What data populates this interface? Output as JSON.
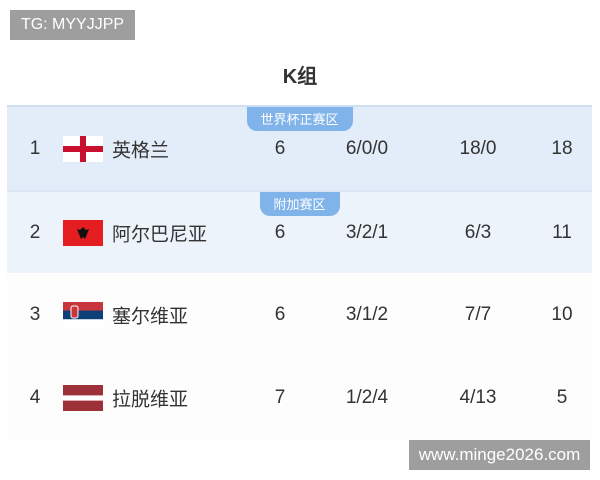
{
  "watermark_top": "TG: MYYJJPP",
  "watermark_bottom": "www.minge2026.com",
  "title": "K组",
  "colors": {
    "qualify_bg": "#e2edf9",
    "playoff_bg": "#edf3fb",
    "badge": "#7fb3ea"
  },
  "rows": [
    {
      "rank": "1",
      "flag": "england-flag",
      "team": "英格兰",
      "played": "6",
      "wdl": "6/0/0",
      "goals": "18/0",
      "points": "18",
      "badge": "世界杯正赛区"
    },
    {
      "rank": "2",
      "flag": "albania-flag",
      "team": "阿尔巴尼亚",
      "played": "6",
      "wdl": "3/2/1",
      "goals": "6/3",
      "points": "11",
      "badge": "附加赛区"
    },
    {
      "rank": "3",
      "flag": "serbia-flag",
      "team": "塞尔维亚",
      "played": "6",
      "wdl": "3/1/2",
      "goals": "7/7",
      "points": "10"
    },
    {
      "rank": "4",
      "flag": "latvia-flag",
      "team": "拉脱维亚",
      "played": "7",
      "wdl": "1/2/4",
      "goals": "4/13",
      "points": "5"
    }
  ]
}
